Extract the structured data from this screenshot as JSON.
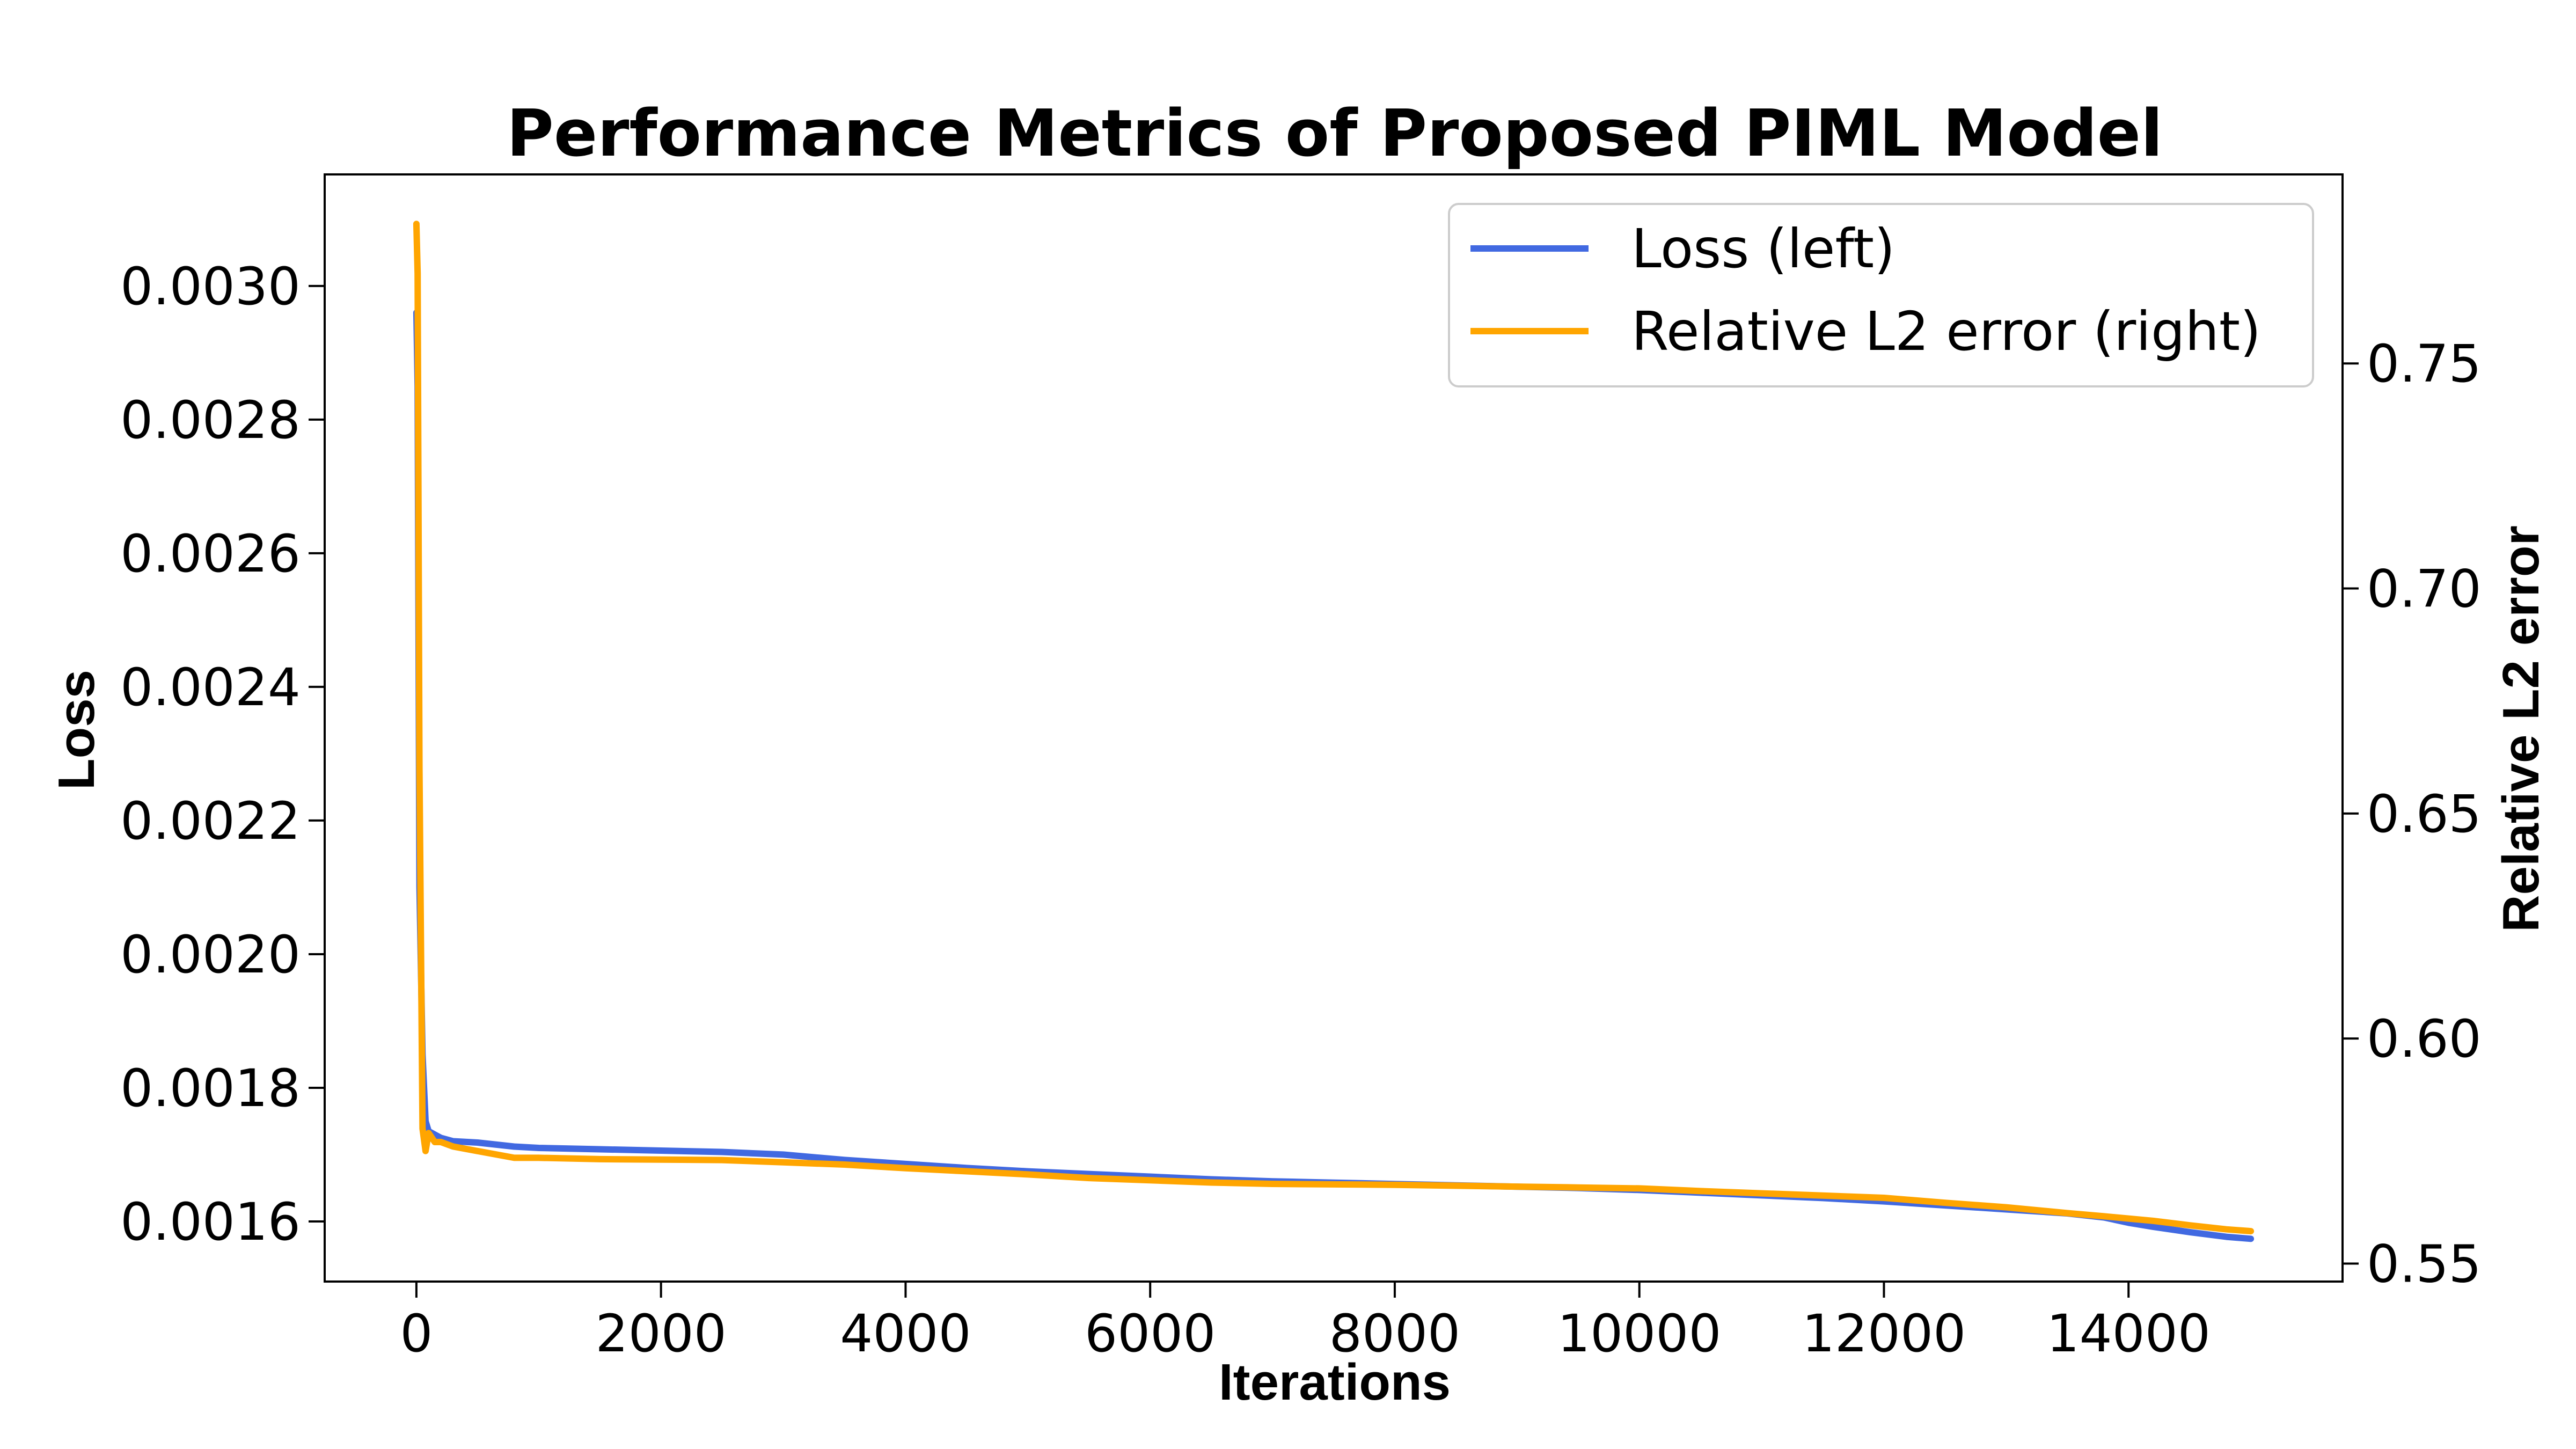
{
  "chart_data": {
    "type": "line",
    "title": "Performance Metrics of Proposed PIML Model",
    "xlabel": "Iterations",
    "ylabel_left": "Loss",
    "ylabel_right": "Relative L2 error",
    "xlim": [
      -750,
      15750
    ],
    "ylim_left": [
      0.00151,
      0.003167
    ],
    "ylim_right": [
      0.546,
      0.792
    ],
    "x_ticks": [
      0,
      2000,
      4000,
      6000,
      8000,
      10000,
      12000,
      14000
    ],
    "x_tick_labels": [
      "0",
      "2000",
      "4000",
      "6000",
      "8000",
      "10000",
      "12000",
      "14000"
    ],
    "y_left_ticks": [
      0.0016,
      0.0018,
      0.002,
      0.0022,
      0.0024,
      0.0026,
      0.0028,
      0.003
    ],
    "y_left_tick_labels": [
      "0.0016",
      "0.0018",
      "0.0020",
      "0.0022",
      "0.0024",
      "0.0026",
      "0.0028",
      "0.0030"
    ],
    "y_right_ticks": [
      0.55,
      0.6,
      0.65,
      0.7,
      0.75
    ],
    "y_right_tick_labels": [
      "0.55",
      "0.60",
      "0.65",
      "0.70",
      "0.75"
    ],
    "grid": false,
    "legend_position": "top-right",
    "series": [
      {
        "name": "Loss (left)",
        "axis": "left",
        "color": "#4169E1",
        "x": [
          0,
          10,
          25,
          50,
          75,
          100,
          150,
          200,
          300,
          500,
          800,
          1000,
          1500,
          2000,
          2500,
          3000,
          3500,
          4000,
          4500,
          5000,
          5500,
          6000,
          6500,
          7000,
          7500,
          8000,
          8500,
          9000,
          9500,
          10000,
          10500,
          11000,
          11500,
          12000,
          12500,
          13000,
          13500,
          13800,
          14000,
          14200,
          14500,
          14800,
          15000
        ],
        "y": [
          0.00296,
          0.00285,
          0.0021,
          0.00185,
          0.00175,
          0.001735,
          0.00173,
          0.001725,
          0.00172,
          0.001718,
          0.001712,
          0.00171,
          0.001708,
          0.001706,
          0.001704,
          0.0017,
          0.001692,
          0.001686,
          0.00168,
          0.001675,
          0.001671,
          0.001667,
          0.001663,
          0.00166,
          0.001658,
          0.001656,
          0.001654,
          0.001652,
          0.00165,
          0.001647,
          0.001643,
          0.001639,
          0.001635,
          0.00163,
          0.001624,
          0.001618,
          0.001612,
          0.001606,
          0.001598,
          0.001592,
          0.001584,
          0.001577,
          0.001574
        ]
      },
      {
        "name": "Relative L2 error (right)",
        "axis": "right",
        "color": "#FFA500",
        "x": [
          0,
          10,
          25,
          50,
          75,
          100,
          150,
          200,
          300,
          500,
          800,
          1000,
          1500,
          2000,
          2500,
          3000,
          3500,
          4000,
          4500,
          5000,
          5500,
          6000,
          6500,
          7000,
          7500,
          8000,
          8500,
          9000,
          9500,
          10000,
          10500,
          11000,
          11500,
          12000,
          12500,
          13000,
          13500,
          13800,
          14000,
          14200,
          14500,
          14800,
          15000
        ],
        "y": [
          0.781,
          0.77,
          0.66,
          0.58,
          0.575,
          0.579,
          0.577,
          0.577,
          0.576,
          0.575,
          0.5735,
          0.5735,
          0.5732,
          0.5731,
          0.573,
          0.5725,
          0.572,
          0.5712,
          0.5705,
          0.5698,
          0.569,
          0.5685,
          0.568,
          0.5677,
          0.5676,
          0.5675,
          0.5673,
          0.5671,
          0.5669,
          0.5667,
          0.5661,
          0.5656,
          0.5651,
          0.5646,
          0.5635,
          0.5625,
          0.5612,
          0.5605,
          0.56,
          0.5595,
          0.5585,
          0.5576,
          0.5572
        ]
      }
    ]
  }
}
